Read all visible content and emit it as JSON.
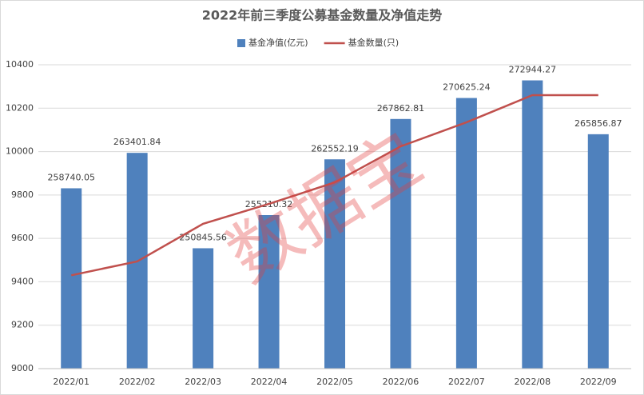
{
  "chart_data": {
    "type": "bar-line",
    "title": "2022年前三季度公募基金数量及净值走势",
    "categories": [
      "2022/01",
      "2022/02",
      "2022/03",
      "2022/04",
      "2022/05",
      "2022/06",
      "2022/07",
      "2022/08",
      "2022/09"
    ],
    "series": [
      {
        "name": "基金净值(亿元)",
        "type": "bar",
        "axis": "y2",
        "color": "#4f81bd",
        "values": [
          258740.05,
          263401.84,
          250845.56,
          255210.32,
          262552.19,
          267862.81,
          270625.24,
          272944.27,
          265856.87
        ]
      },
      {
        "name": "基金数量(只)",
        "type": "line",
        "color": "#c0504d",
        "values": [
          9430,
          9494,
          9667,
          9759,
          9858,
          10024,
          10135,
          10260,
          10260
        ]
      }
    ],
    "ylim": [
      9000,
      10400
    ],
    "yticks": [
      9000,
      9200,
      9400,
      9600,
      9800,
      10000,
      10200,
      10400
    ],
    "y2lim": [
      235000,
      275000
    ],
    "grid": true,
    "legend": "top",
    "watermark": "数据宝"
  }
}
